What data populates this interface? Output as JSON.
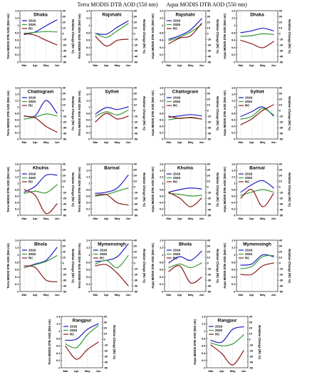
{
  "figure": {
    "terra_title": "Terra MODIS DTB AOD (550 nm)",
    "aqua_title": "Aqua MODIS DTB AOD (550 nm)"
  },
  "style": {
    "color_2019": "#1f1fbf",
    "color_2020": "#3a9a3a",
    "color_rc": "#8b1a1a"
  },
  "chart_data": [
    {
      "type": "line",
      "section": "terra",
      "title": "Dhaka",
      "categories": [
        "Mar",
        "Apr",
        "May",
        "Jun"
      ],
      "ylabel": "Terra MODIS DTB AOD (550 nm)",
      "y2label": "Relative Change (RC %)",
      "ylim": [
        0,
        1.4
      ],
      "y2lim": [
        -50,
        40
      ],
      "legend": "top-left",
      "series": [
        {
          "name": "2019",
          "axis": "left",
          "values": [
            0.75,
            0.82,
            0.99,
            1.15
          ]
        },
        {
          "name": "2020",
          "axis": "left",
          "values": [
            0.78,
            0.81,
            0.83,
            0.82
          ]
        },
        {
          "name": "RC",
          "axis": "right",
          "values": [
            0,
            -3,
            -12,
            -20
          ]
        }
      ]
    },
    {
      "type": "line",
      "section": "terra",
      "title": "Rajshahi",
      "categories": [
        "Mar",
        "Apr",
        "May",
        "Jun"
      ],
      "ylabel": "Terra MODIS DTB AOD (550 nm)",
      "y2label": "Relative Change (RC %)",
      "ylim": [
        0,
        1.4
      ],
      "y2lim": [
        -50,
        40
      ],
      "legend": "",
      "series": [
        {
          "name": "2019",
          "axis": "left",
          "values": [
            0.78,
            0.76,
            0.95,
            1.12
          ]
        },
        {
          "name": "2020",
          "axis": "left",
          "values": [
            0.78,
            0.67,
            0.85,
            1.05
          ]
        },
        {
          "name": "RC",
          "axis": "right",
          "values": [
            -5,
            -22,
            -12,
            -10
          ]
        }
      ]
    },
    {
      "type": "line",
      "section": "aqua",
      "title": "Rajshahi",
      "categories": [
        "Mar",
        "Apr",
        "May",
        "Jun"
      ],
      "ylabel": "Aqua MODIS DTB AOD (550 nm)",
      "y2label": "Relative Change (RC %)",
      "ylim": [
        0,
        1.4
      ],
      "y2lim": [
        -50,
        40
      ],
      "legend": "top-left",
      "series": [
        {
          "name": "2019",
          "axis": "left",
          "values": [
            0.62,
            0.72,
            0.88,
            1.18
          ]
        },
        {
          "name": "2020",
          "axis": "left",
          "values": [
            0.58,
            0.68,
            0.82,
            1.02
          ]
        },
        {
          "name": "RC",
          "axis": "right",
          "values": [
            -18,
            -8,
            -4,
            18
          ]
        }
      ]
    },
    {
      "type": "line",
      "section": "aqua",
      "title": "Dhaka",
      "categories": [
        "Mar",
        "Apr",
        "May",
        "Jun"
      ],
      "ylabel": "Aqua MODIS DTB AOD (550 nm)",
      "y2label": "Relative Change (RC %)",
      "ylim": [
        0,
        1.4
      ],
      "y2lim": [
        -50,
        40
      ],
      "legend": "",
      "series": [
        {
          "name": "2019",
          "axis": "left",
          "values": [
            0.8,
            0.85,
            0.92,
            0.85
          ]
        },
        {
          "name": "2020",
          "axis": "left",
          "values": [
            0.7,
            0.72,
            0.77,
            0.75
          ]
        },
        {
          "name": "RC",
          "axis": "right",
          "values": [
            -12,
            -18,
            -25,
            -14
          ]
        }
      ]
    },
    {
      "type": "line",
      "section": "terra",
      "title": "Chattogram",
      "categories": [
        "Mar",
        "Apr",
        "May",
        "Jun"
      ],
      "ylabel": "Terra MODIS DTB AOD (550 nm)",
      "y2label": "Relative Change (RC %)",
      "ylim": [
        0,
        1.6
      ],
      "y2lim": [
        -50,
        40
      ],
      "legend": "top-left",
      "series": [
        {
          "name": "2019",
          "axis": "left",
          "values": [
            0.72,
            0.72,
            1.2,
            0.8
          ]
        },
        {
          "name": "2020",
          "axis": "left",
          "values": [
            0.62,
            0.68,
            0.78,
            0.72
          ]
        },
        {
          "name": "RC",
          "axis": "right",
          "values": [
            -10,
            -13,
            -28,
            -38
          ]
        }
      ]
    },
    {
      "type": "line",
      "section": "terra",
      "title": "Sylhet",
      "categories": [
        "Mar",
        "Apr",
        "May",
        "Jun"
      ],
      "ylabel": "Terra MODIS DTB AOD (550 nm)",
      "y2label": "Relative Change (RC %)",
      "ylim": [
        0,
        1.6
      ],
      "y2lim": [
        -50,
        40
      ],
      "legend": "",
      "series": [
        {
          "name": "2019",
          "axis": "left",
          "values": [
            0.78,
            0.98,
            0.92,
            1.0
          ]
        },
        {
          "name": "2020",
          "axis": "left",
          "values": [
            0.7,
            0.85,
            0.75,
            0.9
          ]
        },
        {
          "name": "RC",
          "axis": "right",
          "values": [
            -20,
            -5,
            -15,
            -10
          ]
        }
      ]
    },
    {
      "type": "line",
      "section": "aqua",
      "title": "Chattogram",
      "categories": [
        "Mar",
        "Apr",
        "May",
        "Jun"
      ],
      "ylabel": "Aqua MODIS DTB AOD (550 nm)",
      "y2label": "Relative Change (RC %)",
      "ylim": [
        0,
        1.6
      ],
      "y2lim": [
        -50,
        40
      ],
      "legend": "top-left",
      "series": [
        {
          "name": "2019",
          "axis": "left",
          "values": [
            0.68,
            0.72,
            0.76,
            0.72
          ]
        },
        {
          "name": "2020",
          "axis": "left",
          "values": [
            0.6,
            0.65,
            0.66,
            0.62
          ]
        },
        {
          "name": "RC",
          "axis": "right",
          "values": [
            -10,
            -14,
            -12,
            -15
          ]
        }
      ]
    },
    {
      "type": "line",
      "section": "aqua",
      "title": "Sylhet",
      "categories": [
        "Mar",
        "Apr",
        "May",
        "Jun"
      ],
      "ylabel": "Aqua MODIS DTB AOD (550 nm)",
      "y2label": "Relative Change (RC %)",
      "ylim": [
        0,
        1.6
      ],
      "y2lim": [
        -50,
        40
      ],
      "legend": "top-left",
      "series": [
        {
          "name": "2019",
          "axis": "left",
          "values": [
            0.7,
            0.85,
            1.0,
            0.72
          ]
        },
        {
          "name": "2020",
          "axis": "left",
          "values": [
            0.62,
            0.7,
            0.95,
            0.75
          ]
        },
        {
          "name": "RC",
          "axis": "right",
          "values": [
            -25,
            -15,
            0,
            10
          ]
        }
      ]
    },
    {
      "type": "line",
      "section": "terra",
      "title": "Khulna",
      "categories": [
        "Mar",
        "Apr",
        "May",
        "Jun"
      ],
      "ylabel": "Terra MODIS DTB AOD (550 nm)",
      "y2label": "Relative Change (RC %)",
      "ylim": [
        0,
        1.6
      ],
      "y2lim": [
        -50,
        40
      ],
      "legend": "top-left",
      "series": [
        {
          "name": "2019",
          "axis": "left",
          "values": [
            0.72,
            0.9,
            1.25,
            1.25
          ]
        },
        {
          "name": "2020",
          "axis": "left",
          "values": [
            0.68,
            0.75,
            0.7,
            0.95
          ]
        },
        {
          "name": "RC",
          "axis": "right",
          "values": [
            -5,
            -15,
            -47,
            -30
          ]
        }
      ]
    },
    {
      "type": "line",
      "section": "terra",
      "title": "Barisal",
      "categories": [
        "Mar",
        "Apr",
        "May",
        "Jun"
      ],
      "ylabel": "Terra MODIS DTB AOD (550 nm)",
      "y2label": "Relative Change (RC %)",
      "ylim": [
        0,
        1.6
      ],
      "y2lim": [
        -50,
        40
      ],
      "legend": "",
      "series": [
        {
          "name": "2019",
          "axis": "left",
          "values": [
            0.68,
            0.72,
            0.85,
            1.25
          ]
        },
        {
          "name": "2020",
          "axis": "left",
          "values": [
            0.6,
            0.65,
            0.75,
            0.85
          ]
        },
        {
          "name": "RC",
          "axis": "right",
          "values": [
            -15,
            -14,
            -28,
            -32
          ]
        }
      ]
    },
    {
      "type": "line",
      "section": "aqua",
      "title": "Khulna",
      "categories": [
        "Mar",
        "Apr",
        "May",
        "Jun"
      ],
      "ylabel": "Aqua MODIS DTB AOD (550 nm)",
      "y2label": "Relative Change (RC %)",
      "ylim": [
        0,
        1.6
      ],
      "y2lim": [
        -50,
        40
      ],
      "legend": "top-left",
      "series": [
        {
          "name": "2019",
          "axis": "left",
          "values": [
            0.72,
            0.8,
            0.85,
            0.82
          ]
        },
        {
          "name": "2020",
          "axis": "left",
          "values": [
            0.68,
            0.65,
            0.6,
            0.62
          ]
        },
        {
          "name": "RC",
          "axis": "right",
          "values": [
            -10,
            -20,
            -35,
            -20
          ]
        }
      ]
    },
    {
      "type": "line",
      "section": "aqua",
      "title": "Barisal",
      "categories": [
        "Mar",
        "Apr",
        "May",
        "Jun"
      ],
      "ylabel": "Aqua MODIS DTB AOD (550 nm)",
      "y2label": "Relative Change (RC %)",
      "ylim": [
        0,
        1.6
      ],
      "y2lim": [
        -50,
        40
      ],
      "legend": "top-left",
      "series": [
        {
          "name": "2019",
          "axis": "left",
          "values": [
            0.72,
            0.95,
            1.08,
            0.85
          ]
        },
        {
          "name": "2020",
          "axis": "left",
          "values": [
            0.62,
            0.72,
            0.8,
            0.72
          ]
        },
        {
          "name": "RC",
          "axis": "right",
          "values": [
            -20,
            -5,
            -35,
            -12
          ]
        }
      ]
    },
    {
      "type": "line",
      "section": "terra",
      "title": "Bhola",
      "categories": [
        "Mar",
        "Apr",
        "May",
        "Jun"
      ],
      "ylabel": "Terra MODIS DTB AOD (550 nm)",
      "y2label": "Relative Change (RC %)",
      "ylim": [
        0,
        1.4
      ],
      "y2lim": [
        -50,
        40
      ],
      "legend": "top-left",
      "series": [
        {
          "name": "2019",
          "axis": "left",
          "values": [
            0.65,
            0.75,
            0.85,
            1.2
          ]
        },
        {
          "name": "2020",
          "axis": "left",
          "values": [
            0.65,
            0.73,
            0.82,
            0.98
          ]
        },
        {
          "name": "RC",
          "axis": "right",
          "values": [
            -5,
            -8,
            -30,
            -33
          ]
        }
      ]
    },
    {
      "type": "line",
      "section": "terra",
      "title": "Mymensingh",
      "categories": [
        "Mar",
        "Apr",
        "May",
        "Jun"
      ],
      "ylabel": "Terra MODIS DTB AOD (550 nm)",
      "y2label": "Relative Change (RC %)",
      "ylim": [
        0,
        1.4
      ],
      "y2lim": [
        -50,
        40
      ],
      "legend": "top-left",
      "series": [
        {
          "name": "2019",
          "axis": "left",
          "values": [
            0.82,
            0.85,
            0.95,
            1.3
          ]
        },
        {
          "name": "2020",
          "axis": "left",
          "values": [
            0.75,
            0.85,
            0.65,
            0.98
          ]
        },
        {
          "name": "RC",
          "axis": "right",
          "values": [
            -5,
            -3,
            -18,
            -40
          ]
        }
      ]
    },
    {
      "type": "line",
      "section": "aqua",
      "title": "Bhola",
      "categories": [
        "Mar",
        "Apr",
        "May",
        "Jun"
      ],
      "ylabel": "Aqua MODIS DTB AOD (550 nm)",
      "y2label": "Relative Change (RC %)",
      "ylim": [
        0,
        1.4
      ],
      "y2lim": [
        -50,
        40
      ],
      "legend": "top-left",
      "series": [
        {
          "name": "2019",
          "axis": "left",
          "values": [
            0.78,
            0.95,
            0.85,
            1.1
          ]
        },
        {
          "name": "2020",
          "axis": "left",
          "values": [
            0.65,
            0.75,
            0.65,
            0.78
          ]
        },
        {
          "name": "RC",
          "axis": "right",
          "values": [
            -15,
            -5,
            -35,
            -25
          ]
        }
      ]
    },
    {
      "type": "line",
      "section": "aqua",
      "title": "Mymensingh",
      "categories": [
        "Mar",
        "Apr",
        "May",
        "Jun"
      ],
      "ylabel": "Aqua MODIS DTB AOD (550 nm)",
      "y2label": "Relative Change (RC %)",
      "ylim": [
        0,
        1.4
      ],
      "y2lim": [
        -50,
        40
      ],
      "legend": "top-left",
      "series": [
        {
          "name": "2019",
          "axis": "left",
          "values": [
            0.72,
            0.75,
            1.0,
            0.95
          ]
        },
        {
          "name": "2020",
          "axis": "left",
          "values": [
            0.62,
            0.68,
            0.95,
            0.98
          ]
        },
        {
          "name": "RC",
          "axis": "right",
          "values": [
            -20,
            -20,
            -5,
            0
          ]
        }
      ]
    },
    {
      "type": "line",
      "section": "terra",
      "title": "Rangpur",
      "categories": [
        "Mar",
        "Apr",
        "May",
        "Jun"
      ],
      "ylabel": "Terra MODIS DTB AOD (550 nm)",
      "y2label": "Relative Change (RC %)",
      "ylim": [
        0,
        1.4
      ],
      "y2lim": [
        -50,
        40
      ],
      "legend": "top-left",
      "series": [
        {
          "name": "2019",
          "axis": "left",
          "values": [
            0.75,
            0.78,
            1.05,
            1.2
          ]
        },
        {
          "name": "2020",
          "axis": "left",
          "values": [
            0.65,
            0.55,
            0.9,
            1.15
          ]
        },
        {
          "name": "RC",
          "axis": "right",
          "values": [
            -12,
            -35,
            -18,
            -5
          ]
        }
      ]
    },
    {
      "type": "line",
      "section": "aqua",
      "title": "Rangpur",
      "categories": [
        "Mar",
        "Apr",
        "May",
        "Jun"
      ],
      "ylabel": "Aqua MODIS DTB AOD (550 nm)",
      "y2label": "Relative Change (RC %)",
      "ylim": [
        0,
        1.4
      ],
      "y2lim": [
        -50,
        40
      ],
      "legend": "top-left",
      "series": [
        {
          "name": "2019",
          "axis": "left",
          "values": [
            0.75,
            0.7,
            1.05,
            1.12
          ]
        },
        {
          "name": "2020",
          "axis": "left",
          "values": [
            0.68,
            0.6,
            0.65,
            0.9
          ]
        },
        {
          "name": "RC",
          "axis": "right",
          "values": [
            -10,
            -25,
            -45,
            -20
          ]
        }
      ]
    }
  ]
}
